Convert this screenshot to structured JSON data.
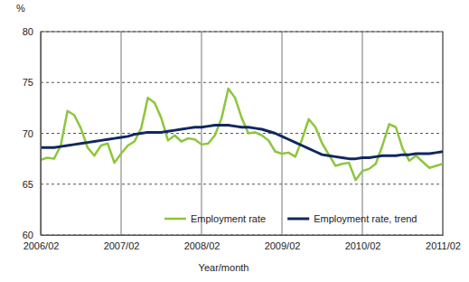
{
  "chart_data": {
    "type": "line",
    "y_label": "%",
    "x_label": "Year/month",
    "categories": [
      "2006/02",
      null,
      null,
      null,
      null,
      null,
      null,
      null,
      null,
      null,
      null,
      null,
      "2007/02",
      null,
      null,
      null,
      null,
      null,
      null,
      null,
      null,
      null,
      null,
      null,
      "2008/02",
      null,
      null,
      null,
      null,
      null,
      null,
      null,
      null,
      null,
      null,
      null,
      "2009/02",
      null,
      null,
      null,
      null,
      null,
      null,
      null,
      null,
      null,
      null,
      null,
      "2010/02",
      null,
      null,
      null,
      null,
      null,
      null,
      null,
      null,
      null,
      null,
      null,
      "2011/02"
    ],
    "series": [
      {
        "name": "Employment rate",
        "color": "#8dc63f",
        "values": [
          67.4,
          67.6,
          67.5,
          68.8,
          72.2,
          71.8,
          70.5,
          68.6,
          67.8,
          68.8,
          69.0,
          67.1,
          68.0,
          68.8,
          69.2,
          70.5,
          73.5,
          73.0,
          71.5,
          69.3,
          69.8,
          69.2,
          69.5,
          69.4,
          68.9,
          69.0,
          69.8,
          71.5,
          74.4,
          73.5,
          71.5,
          70.0,
          70.1,
          69.8,
          69.3,
          68.2,
          68.0,
          68.1,
          67.7,
          69.4,
          71.4,
          70.6,
          69.0,
          67.9,
          66.8,
          67.0,
          67.1,
          65.4,
          66.3,
          66.5,
          67.0,
          68.8,
          70.9,
          70.6,
          68.5,
          67.3,
          67.8,
          67.2,
          66.6,
          66.8,
          67.0
        ]
      },
      {
        "name": "Employment rate, trend",
        "color": "#10285e",
        "values": [
          68.6,
          68.6,
          68.6,
          68.7,
          68.8,
          68.9,
          69.0,
          69.1,
          69.2,
          69.3,
          69.4,
          69.5,
          69.6,
          69.7,
          69.9,
          70.0,
          70.1,
          70.1,
          70.1,
          70.2,
          70.3,
          70.4,
          70.5,
          70.6,
          70.6,
          70.7,
          70.8,
          70.8,
          70.8,
          70.7,
          70.6,
          70.6,
          70.5,
          70.4,
          70.2,
          70.0,
          69.7,
          69.4,
          69.1,
          68.8,
          68.5,
          68.2,
          67.9,
          67.8,
          67.7,
          67.6,
          67.5,
          67.5,
          67.6,
          67.6,
          67.7,
          67.8,
          67.8,
          67.8,
          67.9,
          67.9,
          68.0,
          68.0,
          68.0,
          68.1,
          68.2
        ]
      }
    ],
    "ylim": [
      60,
      80
    ],
    "yticks": [
      60,
      65,
      70,
      75,
      80
    ],
    "grid": true,
    "legend": "bottom"
  }
}
